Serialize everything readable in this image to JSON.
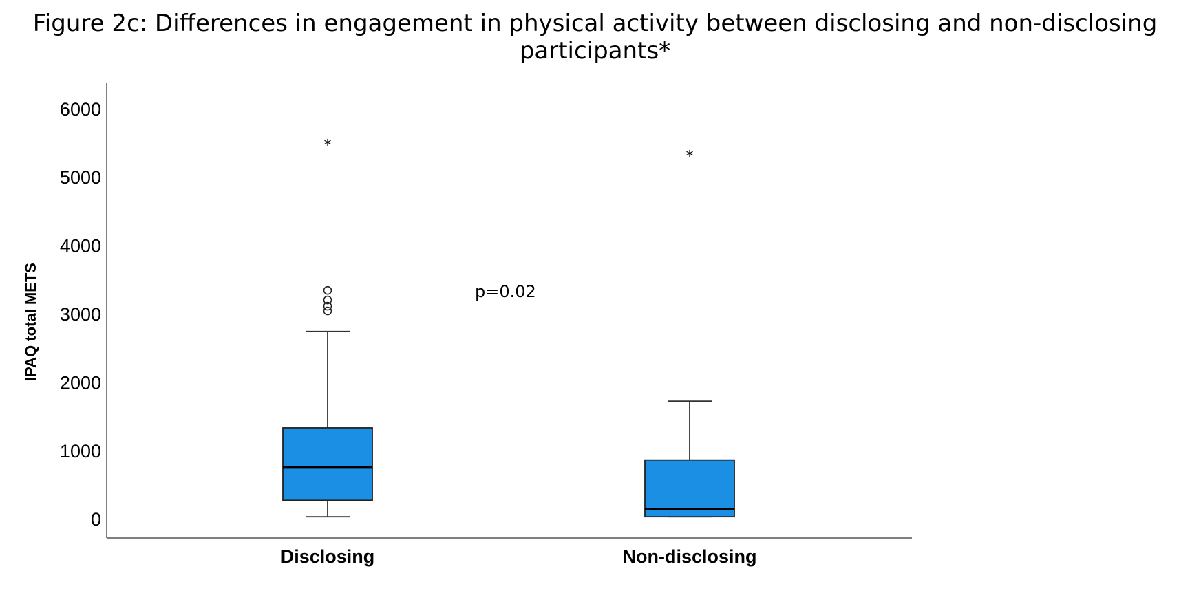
{
  "title": "Figure 2c: Differences in engagement in physical activity between disclosing and non-disclosing participants*",
  "chart_data": {
    "type": "boxplot",
    "title": "Figure 2c: Differences in engagement in physical activity between disclosing and non-disclosing participants*",
    "ylabel": "IPAQ total METS",
    "xlabel": "",
    "ylim": [
      -280,
      6380
    ],
    "yticks": [
      0,
      1000,
      2000,
      3000,
      4000,
      5000,
      6000
    ],
    "grid": false,
    "box_color": "#1a8fe3",
    "categories": [
      "Disclosing",
      "Non-disclosing"
    ],
    "boxes": [
      {
        "category": "Disclosing",
        "whisker_low": 30,
        "q1": 270,
        "median": 750,
        "q3": 1330,
        "whisker_high": 2740,
        "outliers": [
          3040,
          3110,
          3200,
          3340
        ],
        "extremes": [
          5480
        ]
      },
      {
        "category": "Non-disclosing",
        "whisker_low": 30,
        "q1": 30,
        "median": 140,
        "q3": 860,
        "whisker_high": 1720,
        "outliers": [],
        "extremes": [
          5320
        ]
      }
    ],
    "annotations": [
      {
        "text": "p=0.02"
      }
    ]
  }
}
